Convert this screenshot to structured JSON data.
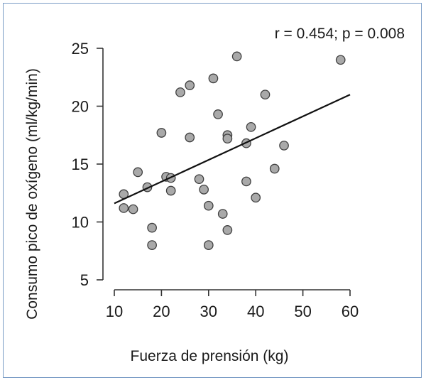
{
  "chart_data": {
    "type": "scatter",
    "title": "",
    "annotation": "r = 0.454; p = 0.008",
    "xlabel": "Fuerza de prensión (kg)",
    "ylabel": "Consumo pico de oxígeno (ml/kg/min)",
    "xlim": [
      8,
      62
    ],
    "ylim": [
      3.8,
      26
    ],
    "xticks": [
      10,
      20,
      30,
      40,
      50,
      60
    ],
    "yticks": [
      5,
      10,
      15,
      20,
      25
    ],
    "grid": false,
    "point_color": "#a9a9a9",
    "point_edge_color": "#3f3f3f",
    "line_color": "#111111",
    "points": [
      {
        "x": 12,
        "y": 12.4
      },
      {
        "x": 12,
        "y": 11.2
      },
      {
        "x": 14,
        "y": 11.1
      },
      {
        "x": 15,
        "y": 14.3
      },
      {
        "x": 17,
        "y": 13.0
      },
      {
        "x": 18,
        "y": 9.5
      },
      {
        "x": 18,
        "y": 8.0
      },
      {
        "x": 20,
        "y": 17.7
      },
      {
        "x": 21,
        "y": 13.9
      },
      {
        "x": 22,
        "y": 13.8
      },
      {
        "x": 22,
        "y": 12.7
      },
      {
        "x": 24,
        "y": 21.2
      },
      {
        "x": 26,
        "y": 21.8
      },
      {
        "x": 26,
        "y": 17.3
      },
      {
        "x": 28,
        "y": 13.7
      },
      {
        "x": 29,
        "y": 12.8
      },
      {
        "x": 30,
        "y": 11.4
      },
      {
        "x": 30,
        "y": 8.0
      },
      {
        "x": 31,
        "y": 22.4
      },
      {
        "x": 32,
        "y": 19.3
      },
      {
        "x": 33,
        "y": 10.7
      },
      {
        "x": 34,
        "y": 17.5
      },
      {
        "x": 34,
        "y": 17.2
      },
      {
        "x": 34,
        "y": 9.3
      },
      {
        "x": 36,
        "y": 24.3
      },
      {
        "x": 38,
        "y": 16.8
      },
      {
        "x": 38,
        "y": 13.5
      },
      {
        "x": 39,
        "y": 18.2
      },
      {
        "x": 40,
        "y": 12.1
      },
      {
        "x": 42,
        "y": 21.0
      },
      {
        "x": 44,
        "y": 14.6
      },
      {
        "x": 46,
        "y": 16.6
      },
      {
        "x": 58,
        "y": 24.0
      }
    ],
    "regression_line": {
      "x": [
        10,
        60
      ],
      "y": [
        11.6,
        21.0
      ]
    }
  }
}
